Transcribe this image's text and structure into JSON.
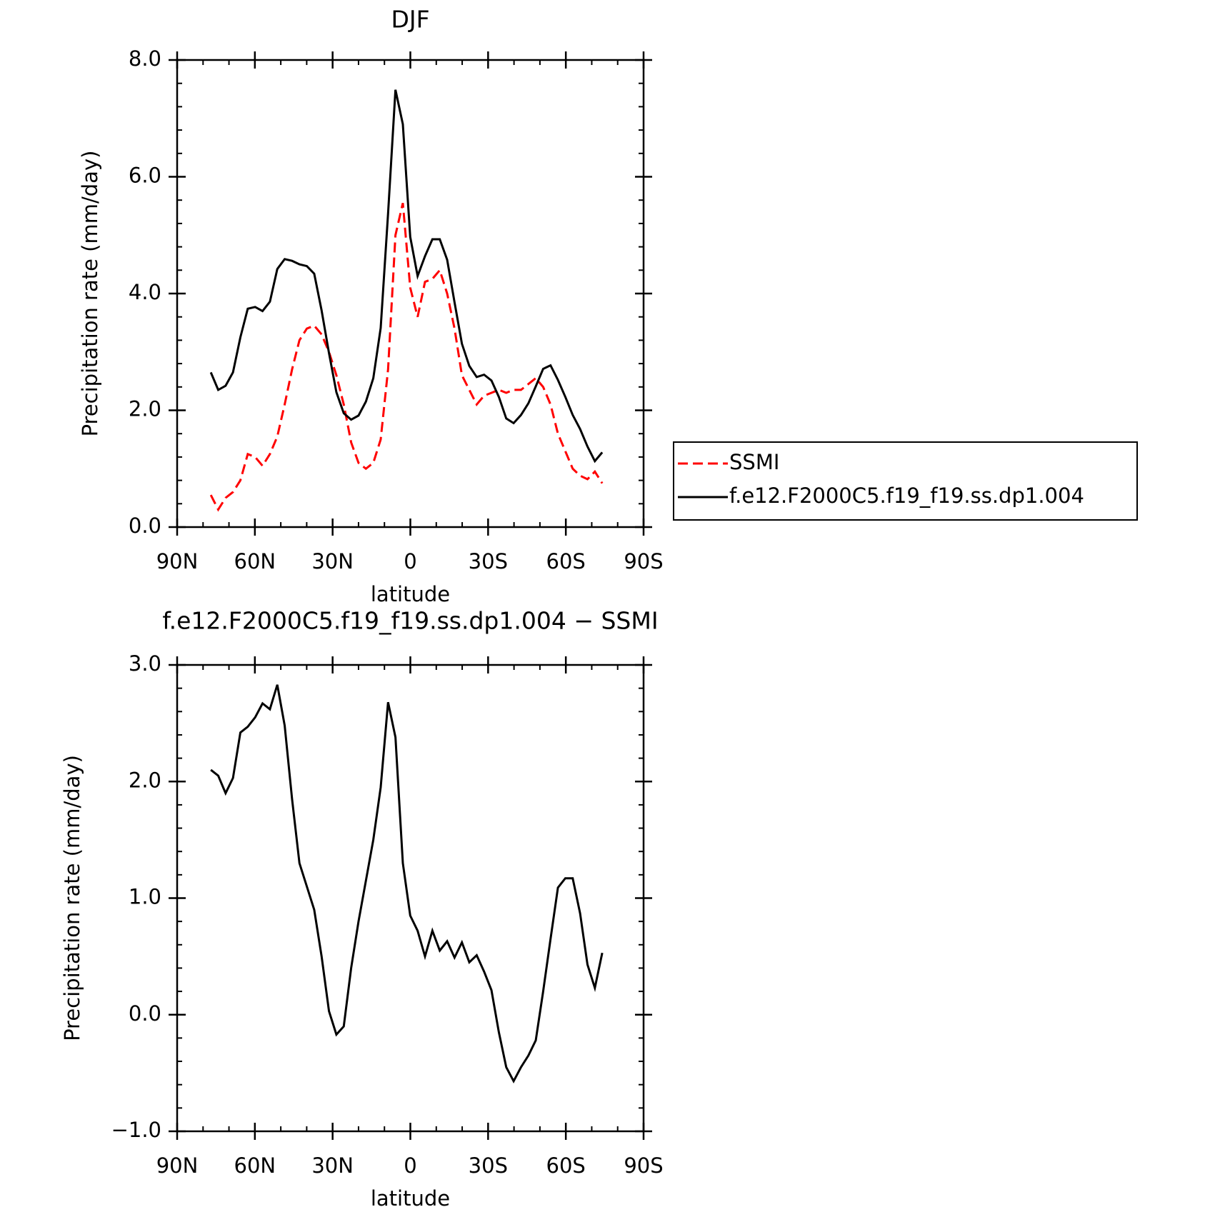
{
  "chart_data": [
    {
      "type": "line",
      "title": "DJF",
      "xlabel": "latitude",
      "ylabel": "Precipitation rate (mm/day)",
      "x": [
        77,
        74.15,
        71.3,
        68.45,
        65.6,
        62.75,
        59.9,
        57.05,
        54.2,
        51.35,
        48.5,
        45.65,
        42.8,
        39.95,
        37.1,
        34.25,
        31.4,
        28.55,
        25.7,
        22.85,
        20,
        17.15,
        14.3,
        11.45,
        8.6,
        5.75,
        2.9,
        0.05,
        -2.8,
        -5.65,
        -8.5,
        -11.35,
        -14.2,
        -17.05,
        -19.9,
        -22.75,
        -25.6,
        -28.45,
        -31.3,
        -34.15,
        -37,
        -39.85,
        -42.7,
        -45.55,
        -48.4,
        -51.25,
        -54.1,
        -56.95,
        -59.8,
        -62.65,
        -65.5,
        -68.35,
        -71.2,
        -74.05
      ],
      "series": [
        {
          "name": "SSMI",
          "color": "#ff0000",
          "line_style": "dashed",
          "values": [
            0.55,
            0.3,
            0.5,
            0.6,
            0.8,
            1.25,
            1.2,
            1.05,
            1.25,
            1.55,
            2.1,
            2.7,
            3.2,
            3.4,
            3.45,
            3.3,
            3.0,
            2.6,
            2.1,
            1.45,
            1.1,
            1.0,
            1.1,
            1.5,
            2.7,
            5.0,
            5.55,
            4.1,
            3.6,
            4.2,
            4.25,
            4.4,
            4.0,
            3.4,
            2.6,
            2.35,
            2.1,
            2.25,
            2.3,
            2.35,
            2.3,
            2.35,
            2.35,
            2.45,
            2.55,
            2.4,
            2.1,
            1.6,
            1.3,
            1.0,
            0.88,
            0.82,
            0.95,
            0.75
          ]
        },
        {
          "name": "f.e12.F2000C5.f19_f19.ss.dp1.004",
          "color": "#000000",
          "line_style": "solid",
          "values": [
            2.65,
            2.35,
            2.42,
            2.65,
            3.25,
            3.74,
            3.77,
            3.7,
            3.86,
            4.42,
            4.59,
            4.56,
            4.5,
            4.47,
            4.34,
            3.71,
            2.98,
            2.31,
            1.95,
            1.84,
            1.91,
            2.15,
            2.55,
            3.41,
            5.37,
            7.49,
            6.9,
            4.97,
            4.3,
            4.64,
            4.93,
            4.93,
            4.58,
            3.85,
            3.14,
            2.76,
            2.57,
            2.61,
            2.51,
            2.23,
            1.86,
            1.78,
            1.92,
            2.12,
            2.41,
            2.71,
            2.77,
            2.52,
            2.23,
            1.92,
            1.68,
            1.38,
            1.13,
            1.28
          ]
        }
      ],
      "xlim": [
        90,
        -90
      ],
      "xticks": [
        {
          "value": 90,
          "label": "90N"
        },
        {
          "value": 60,
          "label": "60N"
        },
        {
          "value": 30,
          "label": "30N"
        },
        0,
        {
          "value": -30,
          "label": "30S"
        },
        {
          "value": -60,
          "label": "60S"
        },
        {
          "value": -90,
          "label": "90S"
        }
      ],
      "ylim": [
        0,
        8
      ],
      "yticks": [
        {
          "value": 0,
          "label": "0.0"
        },
        {
          "value": 2,
          "label": "2.0"
        },
        {
          "value": 4,
          "label": "4.0"
        },
        {
          "value": 6,
          "label": "6.0"
        },
        {
          "value": 8,
          "label": "8.0"
        }
      ],
      "legend": "right"
    },
    {
      "type": "line",
      "title": "f.e12.F2000C5.f19_f19.ss.dp1.004 − SSMI",
      "xlabel": "latitude",
      "ylabel": "Precipitation rate (mm/day)",
      "x": [
        77,
        74.15,
        71.3,
        68.45,
        65.6,
        62.75,
        59.9,
        57.05,
        54.2,
        51.35,
        48.5,
        45.65,
        42.8,
        39.95,
        37.1,
        34.25,
        31.4,
        28.55,
        25.7,
        22.85,
        20,
        17.15,
        14.3,
        11.45,
        8.6,
        5.75,
        2.9,
        0.05,
        -2.8,
        -5.65,
        -8.5,
        -11.35,
        -14.2,
        -17.05,
        -19.9,
        -22.75,
        -25.6,
        -28.45,
        -31.3,
        -34.15,
        -37,
        -39.85,
        -42.7,
        -45.55,
        -48.4,
        -51.25,
        -54.1,
        -56.95,
        -59.8,
        -62.65,
        -65.5,
        -68.35,
        -71.2,
        -74.05
      ],
      "series": [
        {
          "color": "#000000",
          "line_style": "solid",
          "values": [
            2.1,
            2.05,
            1.9,
            2.03,
            2.42,
            2.47,
            2.55,
            2.67,
            2.62,
            2.83,
            2.48,
            1.85,
            1.3,
            1.1,
            0.9,
            0.5,
            0.03,
            -0.17,
            -0.1,
            0.4,
            0.8,
            1.15,
            1.5,
            1.95,
            2.68,
            2.38,
            1.3,
            0.85,
            0.72,
            0.5,
            0.72,
            0.55,
            0.63,
            0.49,
            0.62,
            0.45,
            0.51,
            0.37,
            0.21,
            -0.15,
            -0.45,
            -0.57,
            -0.45,
            -0.35,
            -0.22,
            0.2,
            0.65,
            1.09,
            1.17,
            1.17,
            0.87,
            0.43,
            0.23,
            0.53
          ]
        }
      ],
      "xlim": [
        90,
        -90
      ],
      "xticks": [
        {
          "value": 90,
          "label": "90N"
        },
        {
          "value": 60,
          "label": "60N"
        },
        {
          "value": 30,
          "label": "30N"
        },
        0,
        {
          "value": -30,
          "label": "30S"
        },
        {
          "value": -60,
          "label": "60S"
        },
        {
          "value": -90,
          "label": "90S"
        }
      ],
      "ylim": [
        -1,
        3
      ],
      "yticks": [
        {
          "value": -1,
          "label": "−1.0"
        },
        {
          "value": 0,
          "label": "0.0"
        },
        {
          "value": 1,
          "label": "1.0"
        },
        {
          "value": 2,
          "label": "2.0"
        },
        {
          "value": 3,
          "label": "3.0"
        }
      ]
    }
  ]
}
